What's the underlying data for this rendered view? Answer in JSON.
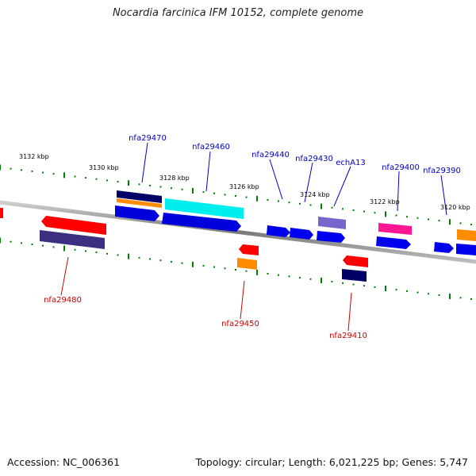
{
  "title": "Nocardia farcinica IFM 10152, complete genome",
  "accession": "Accession: NC_006361",
  "summary": "Topology: circular; Length: 6,021,225 bp; Genes: 5,747",
  "colors": {
    "forward_label": "#0000c0",
    "reverse_label": "#cc0000",
    "tick": "#008000",
    "backbone": "#888888"
  },
  "ticks": [
    {
      "label": "3132 kbp"
    },
    {
      "label": "3130 kbp"
    },
    {
      "label": "3128 kbp"
    },
    {
      "label": "3126 kbp"
    },
    {
      "label": "3124 kbp"
    },
    {
      "label": "3122 kbp"
    },
    {
      "label": "3120 kbp"
    }
  ],
  "genes": [
    {
      "label": "nfa29470",
      "strand": "forward"
    },
    {
      "label": "nfa29460",
      "strand": "forward"
    },
    {
      "label": "nfa29440",
      "strand": "forward"
    },
    {
      "label": "nfa29430",
      "strand": "forward"
    },
    {
      "label": "echA13",
      "strand": "forward"
    },
    {
      "label": "nfa29400",
      "strand": "forward"
    },
    {
      "label": "nfa29390",
      "strand": "forward"
    },
    {
      "label": "nfa29480",
      "strand": "reverse"
    },
    {
      "label": "nfa29450",
      "strand": "reverse"
    },
    {
      "label": "nfa29410",
      "strand": "reverse"
    }
  ]
}
